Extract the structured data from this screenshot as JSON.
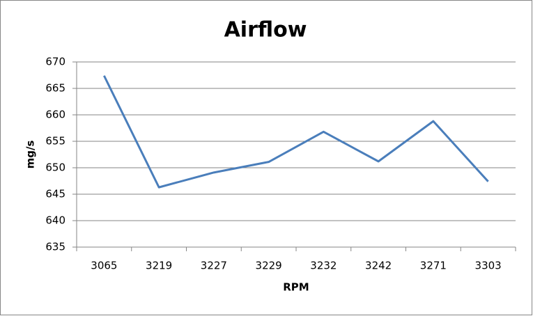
{
  "chart_data": {
    "type": "line",
    "title": "Airflow",
    "x_label": "RPM",
    "y_label": "mg/s",
    "categories": [
      "3065",
      "3219",
      "3227",
      "3229",
      "3232",
      "3242",
      "3271",
      "3303"
    ],
    "values": [
      667.4,
      646.3,
      649.1,
      651.1,
      656.8,
      651.2,
      658.8,
      647.4
    ],
    "color": "#4a7ebb",
    "ylim": [
      635,
      670
    ],
    "yticks": [
      635,
      640,
      645,
      650,
      655,
      660,
      665,
      670
    ],
    "grid": true
  }
}
